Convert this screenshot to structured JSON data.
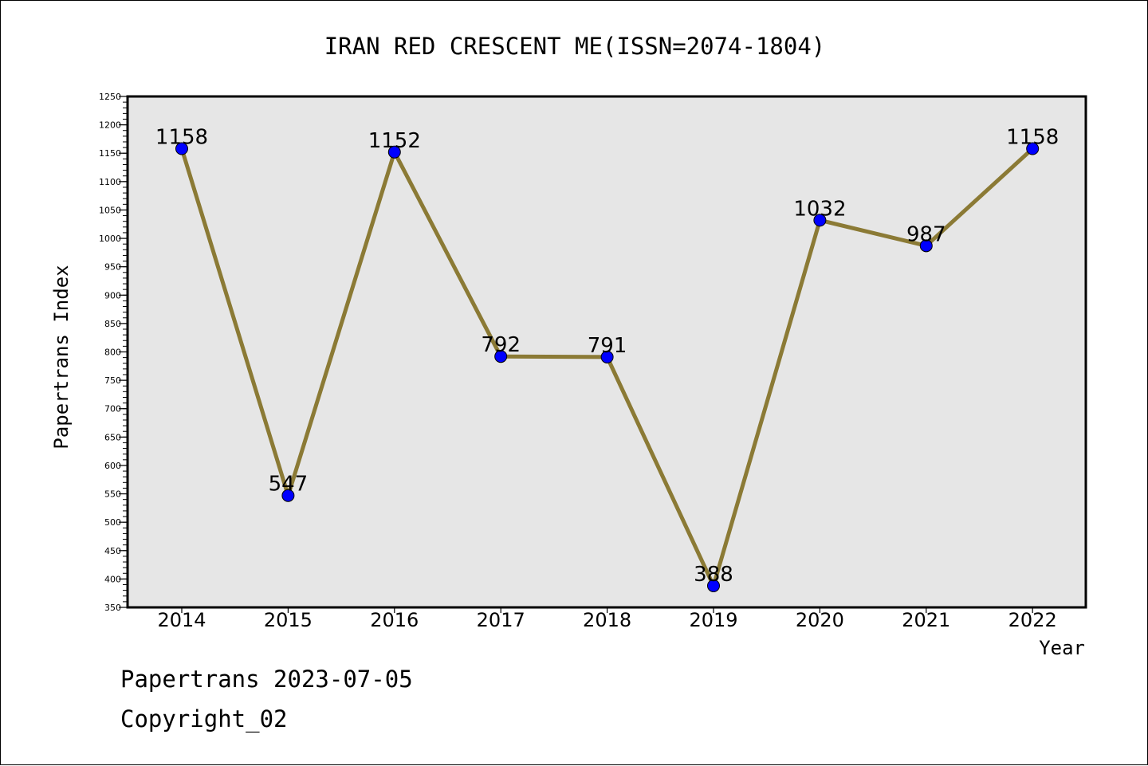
{
  "chart_data": {
    "type": "line",
    "title": "IRAN RED CRESCENT ME(ISSN=2074-1804)",
    "xlabel": "Year",
    "ylabel": "Papertrans Index",
    "categories": [
      "2014",
      "2015",
      "2016",
      "2017",
      "2018",
      "2019",
      "2020",
      "2021",
      "2022"
    ],
    "series": [
      {
        "values": [
          1158,
          547,
          1152,
          792,
          791,
          388,
          1032,
          987,
          1158
        ]
      }
    ],
    "data_labels": [
      "1158",
      "547",
      "1152",
      "792",
      "791",
      "388",
      "1032",
      "987",
      "1158"
    ],
    "ylim": [
      350,
      1250
    ],
    "yticks": [
      "350",
      "400",
      "450",
      "500",
      "550",
      "600",
      "650",
      "700",
      "750",
      "800",
      "850",
      "900",
      "950",
      "1000",
      "1050",
      "1100",
      "1150",
      "1200",
      "1250"
    ],
    "yminor_step": 10,
    "grid": false,
    "legend": "none",
    "colors": {
      "line": "#8b7a35",
      "marker": "#0000ff",
      "plot_background": "#e6e6e6",
      "axis": "#000000"
    }
  },
  "footer": {
    "line1": "Papertrans 2023-07-05",
    "line2": "Copyright_02"
  }
}
